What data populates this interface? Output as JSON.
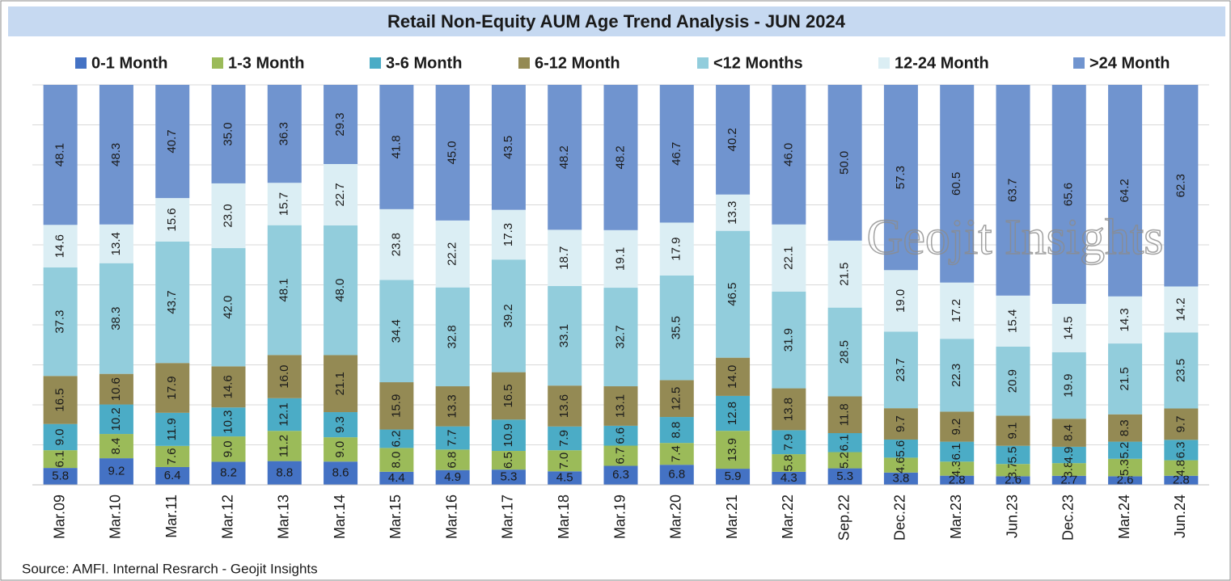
{
  "chart_data": {
    "type": "bar",
    "stacking": "percent",
    "title": "Retail Non-Equity AUM Age Trend Analysis - JUN 2024",
    "source": "Source: AMFI. Internal Resrarch - Geojit Insights",
    "watermark": "Geojit Insights",
    "grid": true,
    "categories": [
      "Mar.09",
      "Mar.10",
      "Mar.11",
      "Mar.12",
      "Mar.13",
      "Mar.14",
      "Mar.15",
      "Mar.16",
      "Mar.17",
      "Mar.18",
      "Mar.19",
      "Mar.20",
      "Mar.21",
      "Mar.22",
      "Sep.22",
      "Dec.22",
      "Mar.23",
      "Jun.23",
      "Dec.23",
      "Mar.24",
      "Jun.24"
    ],
    "series": [
      {
        "name": "0-1 Month",
        "color": "#4472c4",
        "values": [
          5.8,
          9.2,
          6.4,
          8.2,
          8.8,
          8.6,
          4.4,
          4.9,
          5.3,
          4.5,
          6.3,
          6.8,
          5.9,
          4.3,
          5.3,
          3.8,
          2.8,
          2.6,
          2.7,
          2.6,
          2.8
        ],
        "value_labels": [
          "5.8",
          "9.2",
          "6.4",
          "8.2",
          "8.8",
          "8.6",
          "4.4",
          "4.9",
          "5.3",
          "4.5",
          "6.3",
          "6.8",
          "5.9",
          "4.3",
          "5.3",
          "3.8",
          "2.8",
          "2.6",
          "2.7",
          "2.6",
          "2.8"
        ]
      },
      {
        "name": "1-3 Month",
        "color": "#9bbb59",
        "values": [
          6.1,
          8.4,
          7.6,
          9.0,
          11.2,
          9.0,
          8.0,
          6.8,
          6.5,
          7.0,
          6.7,
          7.4,
          13.9,
          5.8,
          5.2,
          4.6,
          4.3,
          3.7,
          3.8,
          5.3,
          4.8
        ],
        "value_labels": [
          "6.1",
          "8.4",
          "7.6",
          "9.0",
          "11.2",
          "9.0",
          "8.0",
          "6.8",
          "6.5",
          "7.0",
          "6.7",
          "7.4",
          "13.9",
          "5.8",
          "5.2",
          "4.6",
          "4.3",
          "3.7",
          "3.8",
          "5.3",
          "4.8"
        ]
      },
      {
        "name": "3-6 Month",
        "color": "#4bacc6",
        "values": [
          9.0,
          10.2,
          11.9,
          10.3,
          12.1,
          9.3,
          6.2,
          7.7,
          10.9,
          7.9,
          6.6,
          8.8,
          12.8,
          7.9,
          6.1,
          5.6,
          6.1,
          5.5,
          4.9,
          5.2,
          6.3
        ],
        "value_labels": [
          "9.0",
          "10.2",
          "11.9",
          "10.3",
          "12.1",
          "9.3",
          "6.2",
          "7.7",
          "10.9",
          "7.9",
          "6.6",
          "8.8",
          "12.8",
          "7.9",
          "6.1",
          "5.6",
          "6.1",
          "5.5",
          "4.9",
          "5.2",
          "6.3"
        ]
      },
      {
        "name": "6-12 Month",
        "color": "#948a54",
        "values": [
          16.5,
          10.6,
          17.9,
          14.6,
          16.0,
          21.1,
          15.9,
          13.3,
          16.5,
          13.6,
          13.1,
          12.5,
          14.0,
          13.8,
          11.8,
          9.7,
          9.2,
          9.1,
          8.4,
          8.3,
          9.7
        ],
        "value_labels": [
          "16.5",
          "10.6",
          "17.9",
          "14.6",
          "16.0",
          "21.1",
          "15.9",
          "13.3",
          "16.5",
          "13.6",
          "13.1",
          "12.5",
          "14.0",
          "13.8",
          "11.8",
          "9.7",
          "9.2",
          "9.1",
          "8.4",
          "8.3",
          "9.7"
        ]
      },
      {
        "name": "<12 Months",
        "color": "#92cddc",
        "values": [
          37.3,
          38.3,
          43.7,
          42.0,
          48.1,
          48.0,
          34.4,
          32.8,
          39.2,
          33.1,
          32.7,
          35.5,
          46.5,
          31.9,
          28.5,
          23.7,
          22.3,
          20.9,
          19.9,
          21.5,
          23.5
        ],
        "value_labels": [
          "37.3",
          "38.3",
          "43.7",
          "42.0",
          "48.1",
          "48.0",
          "34.4",
          "32.8",
          "39.2",
          "33.1",
          "32.7",
          "35.5",
          "46.5",
          "31.9",
          "28.5",
          "23.7",
          "22.3",
          "20.9",
          "19.9",
          "21.5",
          "23.5"
        ]
      },
      {
        "name": "12-24 Month",
        "color": "#dbeef4",
        "values": [
          14.6,
          13.4,
          15.6,
          23.0,
          15.7,
          22.7,
          23.8,
          22.2,
          17.3,
          18.7,
          19.1,
          17.9,
          13.3,
          22.1,
          21.5,
          19.0,
          17.2,
          15.4,
          14.5,
          14.3,
          14.2
        ],
        "value_labels": [
          "14.6",
          "13.4",
          "15.6",
          "23.0",
          "15.7",
          "22.7",
          "23.8",
          "22.2",
          "17.3",
          "18.7",
          "19.1",
          "17.9",
          "13.3",
          "22.1",
          "21.5",
          "19.0",
          "17.2",
          "15.4",
          "14.5",
          "14.3",
          "14.2"
        ]
      },
      {
        "name": ">24 Month",
        "color": "#7094cf",
        "values": [
          48.1,
          48.3,
          40.7,
          35.0,
          36.3,
          29.3,
          41.8,
          45.0,
          43.5,
          48.2,
          48.2,
          46.7,
          40.2,
          46.0,
          50.0,
          57.3,
          60.5,
          63.7,
          65.6,
          64.2,
          62.3
        ],
        "value_labels": [
          "48.1",
          "48.3",
          "40.7",
          "35.0",
          "36.3",
          "29.3",
          "41.8",
          "45.0",
          "43.5",
          "48.2",
          "48.2",
          "46.7",
          "40.2",
          "46.0",
          "50.0",
          "57.3",
          "60.5",
          "63.7",
          "65.6",
          "64.2",
          "62.3"
        ]
      }
    ]
  }
}
